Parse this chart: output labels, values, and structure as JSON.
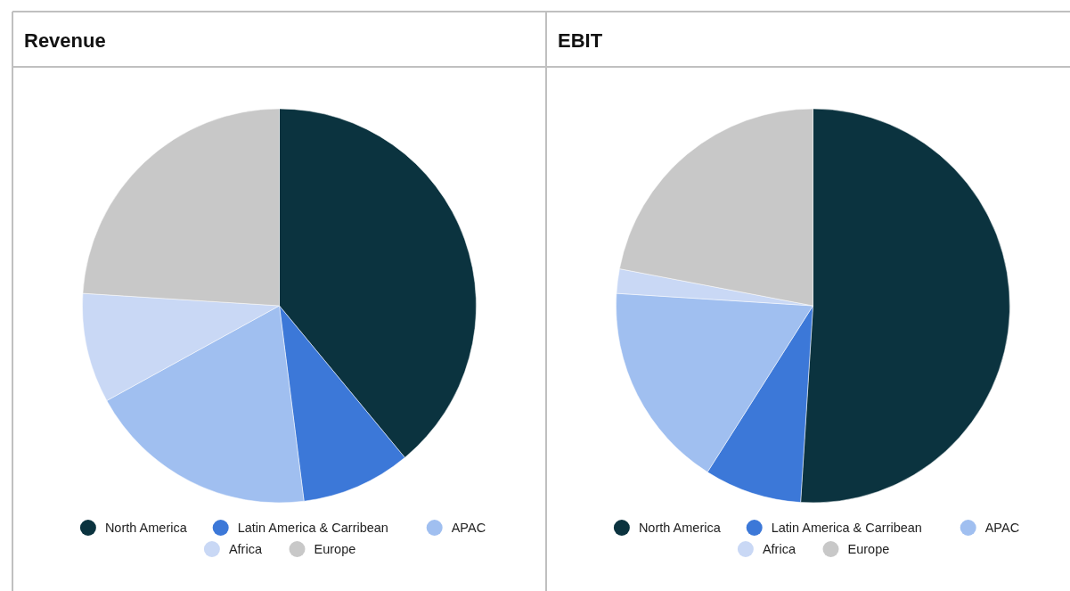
{
  "chart_data": [
    {
      "type": "pie",
      "title": "Revenue",
      "categories": [
        "North America",
        "Latin America & Carribean",
        "APAC",
        "Africa",
        "Europe"
      ],
      "values": [
        39,
        9,
        19,
        9,
        24
      ],
      "colors": [
        "#0b333f",
        "#3c78d8",
        "#a0bff0",
        "#c9d8f5",
        "#c8c8c8"
      ],
      "legend": "bottom"
    },
    {
      "type": "pie",
      "title": "EBIT",
      "categories": [
        "North America",
        "Latin America & Carribean",
        "APAC",
        "Africa",
        "Europe"
      ],
      "values": [
        51,
        8,
        17,
        2,
        22
      ],
      "colors": [
        "#0b333f",
        "#3c78d8",
        "#a0bff0",
        "#c9d8f5",
        "#c8c8c8"
      ],
      "legend": "bottom"
    }
  ]
}
